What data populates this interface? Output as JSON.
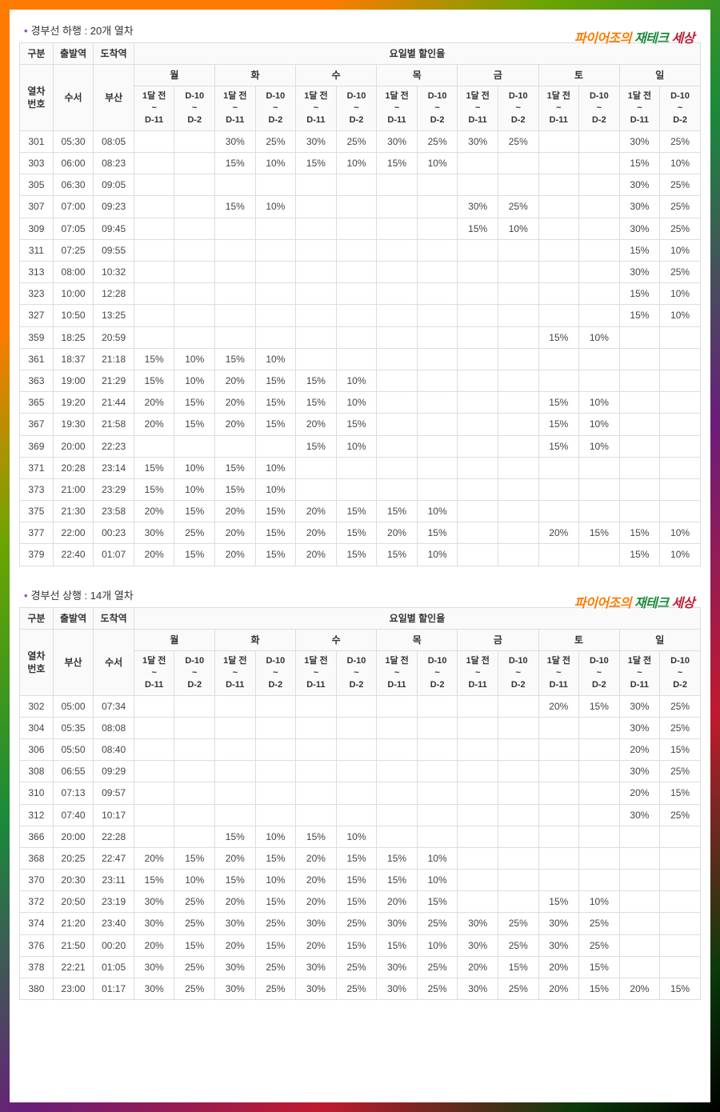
{
  "watermark": {
    "p1": "파이어조의",
    "p2": " 재테크",
    "p3": " 세상"
  },
  "header": {
    "gubun": "구분",
    "dep": "출발역",
    "arr": "도착역",
    "rateTitle": "요일별 할인율",
    "trainNo": "열차\n번호",
    "days": [
      "월",
      "화",
      "수",
      "목",
      "금",
      "토",
      "일"
    ],
    "sub1": "1달 전\n~\nD-11",
    "sub2": "D-10\n~\nD-2"
  },
  "s1": {
    "title": "경부선 하행 : 20개 열차",
    "depSt": "수서",
    "arrSt": "부산",
    "rows": [
      {
        "n": "301",
        "d": "05:30",
        "a": "08:05",
        "c": [
          "",
          "",
          "30%",
          "25%",
          "30%",
          "25%",
          "30%",
          "25%",
          "30%",
          "25%",
          "",
          "",
          "30%",
          "25%"
        ]
      },
      {
        "n": "303",
        "d": "06:00",
        "a": "08:23",
        "c": [
          "",
          "",
          "15%",
          "10%",
          "15%",
          "10%",
          "15%",
          "10%",
          "",
          "",
          "",
          "",
          "15%",
          "10%"
        ]
      },
      {
        "n": "305",
        "d": "06:30",
        "a": "09:05",
        "c": [
          "",
          "",
          "",
          "",
          "",
          "",
          "",
          "",
          "",
          "",
          "",
          "",
          "30%",
          "25%"
        ]
      },
      {
        "n": "307",
        "d": "07:00",
        "a": "09:23",
        "c": [
          "",
          "",
          "15%",
          "10%",
          "",
          "",
          "",
          "",
          "30%",
          "25%",
          "",
          "",
          "30%",
          "25%"
        ]
      },
      {
        "n": "309",
        "d": "07:05",
        "a": "09:45",
        "c": [
          "",
          "",
          "",
          "",
          "",
          "",
          "",
          "",
          "15%",
          "10%",
          "",
          "",
          "30%",
          "25%"
        ]
      },
      {
        "n": "311",
        "d": "07:25",
        "a": "09:55",
        "c": [
          "",
          "",
          "",
          "",
          "",
          "",
          "",
          "",
          "",
          "",
          "",
          "",
          "15%",
          "10%"
        ]
      },
      {
        "n": "313",
        "d": "08:00",
        "a": "10:32",
        "c": [
          "",
          "",
          "",
          "",
          "",
          "",
          "",
          "",
          "",
          "",
          "",
          "",
          "30%",
          "25%"
        ]
      },
      {
        "n": "323",
        "d": "10:00",
        "a": "12:28",
        "c": [
          "",
          "",
          "",
          "",
          "",
          "",
          "",
          "",
          "",
          "",
          "",
          "",
          "15%",
          "10%"
        ]
      },
      {
        "n": "327",
        "d": "10:50",
        "a": "13:25",
        "c": [
          "",
          "",
          "",
          "",
          "",
          "",
          "",
          "",
          "",
          "",
          "",
          "",
          "15%",
          "10%"
        ]
      },
      {
        "n": "359",
        "d": "18:25",
        "a": "20:59",
        "c": [
          "",
          "",
          "",
          "",
          "",
          "",
          "",
          "",
          "",
          "",
          "15%",
          "10%",
          "",
          ""
        ]
      },
      {
        "n": "361",
        "d": "18:37",
        "a": "21:18",
        "c": [
          "15%",
          "10%",
          "15%",
          "10%",
          "",
          "",
          "",
          "",
          "",
          "",
          "",
          "",
          "",
          ""
        ]
      },
      {
        "n": "363",
        "d": "19:00",
        "a": "21:29",
        "c": [
          "15%",
          "10%",
          "20%",
          "15%",
          "15%",
          "10%",
          "",
          "",
          "",
          "",
          "",
          "",
          "",
          ""
        ]
      },
      {
        "n": "365",
        "d": "19:20",
        "a": "21:44",
        "c": [
          "20%",
          "15%",
          "20%",
          "15%",
          "15%",
          "10%",
          "",
          "",
          "",
          "",
          "15%",
          "10%",
          "",
          ""
        ]
      },
      {
        "n": "367",
        "d": "19:30",
        "a": "21:58",
        "c": [
          "20%",
          "15%",
          "20%",
          "15%",
          "20%",
          "15%",
          "",
          "",
          "",
          "",
          "15%",
          "10%",
          "",
          ""
        ]
      },
      {
        "n": "369",
        "d": "20:00",
        "a": "22:23",
        "c": [
          "",
          "",
          "",
          "",
          "15%",
          "10%",
          "",
          "",
          "",
          "",
          "15%",
          "10%",
          "",
          ""
        ]
      },
      {
        "n": "371",
        "d": "20:28",
        "a": "23:14",
        "c": [
          "15%",
          "10%",
          "15%",
          "10%",
          "",
          "",
          "",
          "",
          "",
          "",
          "",
          "",
          "",
          ""
        ]
      },
      {
        "n": "373",
        "d": "21:00",
        "a": "23:29",
        "c": [
          "15%",
          "10%",
          "15%",
          "10%",
          "",
          "",
          "",
          "",
          "",
          "",
          "",
          "",
          "",
          ""
        ]
      },
      {
        "n": "375",
        "d": "21:30",
        "a": "23:58",
        "c": [
          "20%",
          "15%",
          "20%",
          "15%",
          "20%",
          "15%",
          "15%",
          "10%",
          "",
          "",
          "",
          "",
          "",
          ""
        ]
      },
      {
        "n": "377",
        "d": "22:00",
        "a": "00:23",
        "c": [
          "30%",
          "25%",
          "20%",
          "15%",
          "20%",
          "15%",
          "20%",
          "15%",
          "",
          "",
          "20%",
          "15%",
          "15%",
          "10%"
        ]
      },
      {
        "n": "379",
        "d": "22:40",
        "a": "01:07",
        "c": [
          "20%",
          "15%",
          "20%",
          "15%",
          "20%",
          "15%",
          "15%",
          "10%",
          "",
          "",
          "",
          "",
          "15%",
          "10%"
        ]
      }
    ]
  },
  "s2": {
    "title": "경부선 상행 : 14개 열차",
    "depSt": "부산",
    "arrSt": "수서",
    "rows": [
      {
        "n": "302",
        "d": "05:00",
        "a": "07:34",
        "c": [
          "",
          "",
          "",
          "",
          "",
          "",
          "",
          "",
          "",
          "",
          "20%",
          "15%",
          "30%",
          "25%"
        ]
      },
      {
        "n": "304",
        "d": "05:35",
        "a": "08:08",
        "c": [
          "",
          "",
          "",
          "",
          "",
          "",
          "",
          "",
          "",
          "",
          "",
          "",
          "30%",
          "25%"
        ]
      },
      {
        "n": "306",
        "d": "05:50",
        "a": "08:40",
        "c": [
          "",
          "",
          "",
          "",
          "",
          "",
          "",
          "",
          "",
          "",
          "",
          "",
          "20%",
          "15%"
        ]
      },
      {
        "n": "308",
        "d": "06:55",
        "a": "09:29",
        "c": [
          "",
          "",
          "",
          "",
          "",
          "",
          "",
          "",
          "",
          "",
          "",
          "",
          "30%",
          "25%"
        ]
      },
      {
        "n": "310",
        "d": "07:13",
        "a": "09:57",
        "c": [
          "",
          "",
          "",
          "",
          "",
          "",
          "",
          "",
          "",
          "",
          "",
          "",
          "20%",
          "15%"
        ]
      },
      {
        "n": "312",
        "d": "07:40",
        "a": "10:17",
        "c": [
          "",
          "",
          "",
          "",
          "",
          "",
          "",
          "",
          "",
          "",
          "",
          "",
          "30%",
          "25%"
        ]
      },
      {
        "n": "366",
        "d": "20:00",
        "a": "22:28",
        "c": [
          "",
          "",
          "15%",
          "10%",
          "15%",
          "10%",
          "",
          "",
          "",
          "",
          "",
          "",
          "",
          ""
        ]
      },
      {
        "n": "368",
        "d": "20:25",
        "a": "22:47",
        "c": [
          "20%",
          "15%",
          "20%",
          "15%",
          "20%",
          "15%",
          "15%",
          "10%",
          "",
          "",
          "",
          "",
          "",
          ""
        ]
      },
      {
        "n": "370",
        "d": "20:30",
        "a": "23:11",
        "c": [
          "15%",
          "10%",
          "15%",
          "10%",
          "20%",
          "15%",
          "15%",
          "10%",
          "",
          "",
          "",
          "",
          "",
          ""
        ]
      },
      {
        "n": "372",
        "d": "20:50",
        "a": "23:19",
        "c": [
          "30%",
          "25%",
          "20%",
          "15%",
          "20%",
          "15%",
          "20%",
          "15%",
          "",
          "",
          "15%",
          "10%",
          "",
          ""
        ]
      },
      {
        "n": "374",
        "d": "21:20",
        "a": "23:40",
        "c": [
          "30%",
          "25%",
          "30%",
          "25%",
          "30%",
          "25%",
          "30%",
          "25%",
          "30%",
          "25%",
          "30%",
          "25%",
          "",
          ""
        ]
      },
      {
        "n": "376",
        "d": "21:50",
        "a": "00:20",
        "c": [
          "20%",
          "15%",
          "20%",
          "15%",
          "20%",
          "15%",
          "15%",
          "10%",
          "30%",
          "25%",
          "30%",
          "25%",
          "",
          ""
        ]
      },
      {
        "n": "378",
        "d": "22:21",
        "a": "01:05",
        "c": [
          "30%",
          "25%",
          "30%",
          "25%",
          "30%",
          "25%",
          "30%",
          "25%",
          "20%",
          "15%",
          "20%",
          "15%",
          "",
          ""
        ]
      },
      {
        "n": "380",
        "d": "23:00",
        "a": "01:17",
        "c": [
          "30%",
          "25%",
          "30%",
          "25%",
          "30%",
          "25%",
          "30%",
          "25%",
          "30%",
          "25%",
          "20%",
          "15%",
          "20%",
          "15%"
        ]
      }
    ]
  }
}
